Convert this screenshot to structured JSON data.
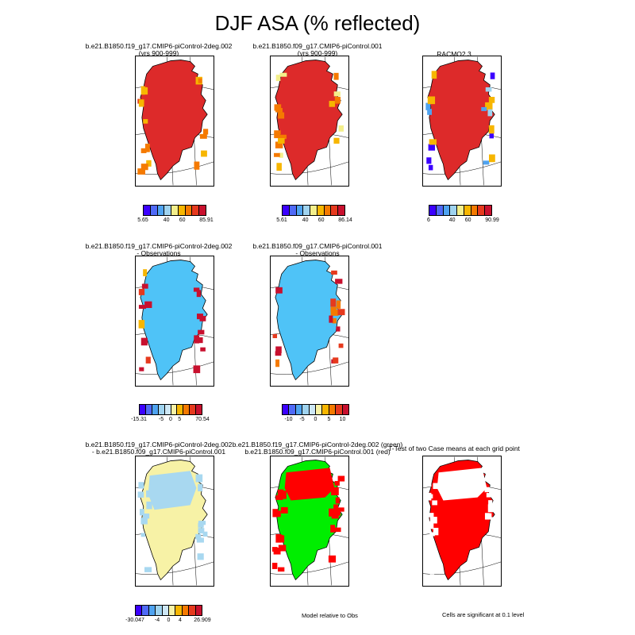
{
  "title": "DJF ASA (% reflected)",
  "palette": {
    "full": [
      "#3b00ff",
      "#4f6af7",
      "#4fa3f0",
      "#9fd3ef",
      "#f3ef8b",
      "#f7b600",
      "#f57a00",
      "#e63a1e",
      "#c8102e"
    ],
    "diff": [
      "#3b00ff",
      "#4f6af7",
      "#4fa3f0",
      "#9fd3ef",
      "#cde7f5",
      "#f7f2a6",
      "#f7b600",
      "#f57a00",
      "#e63a1e",
      "#c8102e"
    ]
  },
  "panels": [
    {
      "title_lines": [
        "b.e21.B1850.f19_g17.CMIP6-piControl-2deg.002",
        "(yrs 900-999)"
      ],
      "fill": "#dd2a2a",
      "accent": [
        "#f7b600",
        "#f57a00",
        "#e63a1e"
      ],
      "colorbar": {
        "labels": [
          "5.65",
          "40",
          "60",
          "85.91"
        ]
      }
    },
    {
      "title_lines": [
        "b.e21.B1850.f09_g17.CMIP6-piControl.001",
        "(yrs 900-999)"
      ],
      "fill": "#dd2a2a",
      "accent": [
        "#f7b600",
        "#f3ef8b",
        "#f57a00"
      ],
      "colorbar": {
        "labels": [
          "5.61",
          "40",
          "60",
          "86.14"
        ]
      }
    },
    {
      "title_lines": [
        "RACMO2.3"
      ],
      "fill": "#dd2a2a",
      "accent": [
        "#3b00ff",
        "#4fa3f0",
        "#f7b600",
        "#9fd3ef"
      ],
      "colorbar": {
        "labels": [
          "6",
          "40",
          "60",
          "90.99"
        ]
      }
    },
    {
      "title_lines": [
        "b.e21.B1850.f19_g17.CMIP6-piControl-2deg.002",
        "- Observations"
      ],
      "fill": "#4fc3f7",
      "accent": [
        "#c8102e",
        "#e63a1e",
        "#f7b600"
      ],
      "colorbar": {
        "labels": [
          "-15.31",
          "-5",
          "0",
          "5",
          "70.54"
        ]
      }
    },
    {
      "title_lines": [
        "b.e21.B1850.f09_g17.CMIP6-piControl.001",
        "- Observations"
      ],
      "fill": "#4fc3f7",
      "accent": [
        "#c8102e",
        "#e63a1e",
        "#f57a00"
      ],
      "colorbar": {
        "labels": [
          "-10",
          "-5",
          "0",
          "5",
          "10"
        ]
      }
    },
    {
      "title_lines": [
        "b.e21.B1850.f19_g17.CMIP6-piControl-2deg.002",
        "- b.e21.B1850.f09_g17.CMIP6-piControl.001"
      ],
      "fill": "#f7f2a6",
      "accent": [
        "#a8d8f0"
      ],
      "colorbar": {
        "labels": [
          "-30.047",
          "-4",
          "0",
          "4",
          "26.909"
        ]
      }
    },
    {
      "title_lines": [
        "b.e21.B1850.f19_g17.CMIP6-piControl-2deg.002 (green)",
        "b.e21.B1850.f09_g17.CMIP6-piControl.001 (red)"
      ],
      "fill": "#00ee00",
      "accent": [
        "#ff0000"
      ],
      "caption": "Model relative to Obs"
    },
    {
      "title_lines": [
        "T-Test of two Case means at each grid point"
      ],
      "fill": "#ff0000",
      "accent": [
        "#ffffff"
      ],
      "caption": "Cells are significant at 0.1 level"
    }
  ]
}
